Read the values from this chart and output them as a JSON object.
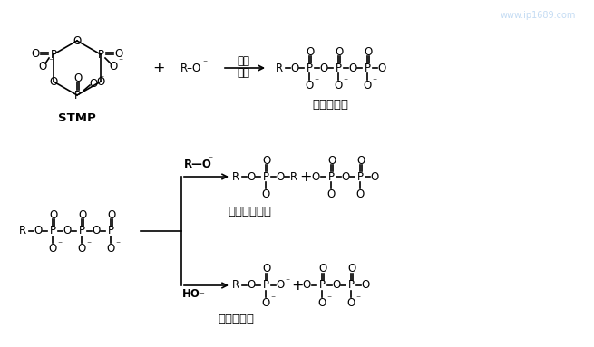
{
  "bg_color": "#ffffff",
  "text_color": "#000000",
  "watermark": "www.ip1689.com",
  "watermark_color": "#aaccee",
  "stmp_label": "STMP",
  "top_reaction_label": "单糖三磷酸",
  "nucleophilic_label1": "亲核",
  "nucleophilic_label2": "反应",
  "bottom_label1": "一磷酸二多糖",
  "bottom_label2": "单糖一磷酸",
  "figsize": [
    6.55,
    3.83
  ],
  "dpi": 100
}
